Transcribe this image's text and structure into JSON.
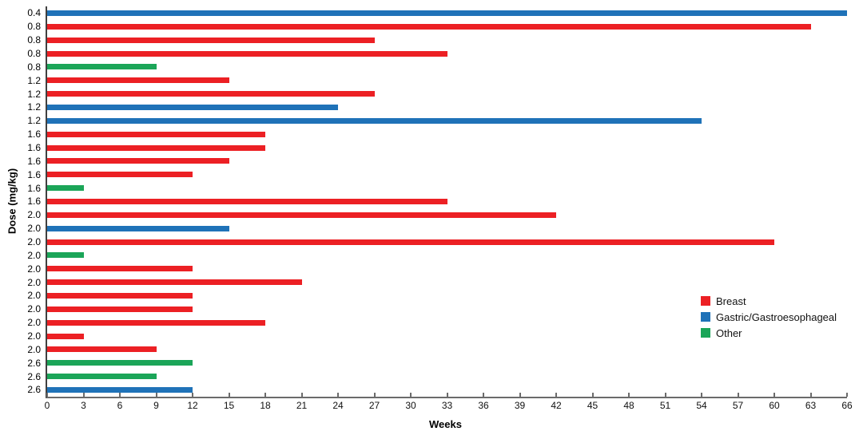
{
  "chart_data": {
    "type": "bar",
    "orientation": "horizontal",
    "title": "",
    "xlabel": "Weeks",
    "ylabel": "Dose (mg/kg)",
    "xlim": [
      0,
      66
    ],
    "xticks": [
      0,
      3,
      6,
      9,
      12,
      15,
      18,
      21,
      24,
      27,
      30,
      33,
      36,
      39,
      42,
      45,
      48,
      51,
      54,
      57,
      60,
      63,
      66
    ],
    "grid": false,
    "legend_position": "right-middle",
    "colors": {
      "Breast": "#EC2024",
      "Gastric/Gastroesophageal": "#1F72B8",
      "Other": "#1BA558"
    },
    "legend": [
      "Breast",
      "Gastric/Gastroesophageal",
      "Other"
    ],
    "bars": [
      {
        "dose": "0.4",
        "group": "Gastric/Gastroesophageal",
        "weeks": 66
      },
      {
        "dose": "0.8",
        "group": "Breast",
        "weeks": 63
      },
      {
        "dose": "0.8",
        "group": "Breast",
        "weeks": 27
      },
      {
        "dose": "0.8",
        "group": "Breast",
        "weeks": 33
      },
      {
        "dose": "0.8",
        "group": "Other",
        "weeks": 9
      },
      {
        "dose": "1.2",
        "group": "Breast",
        "weeks": 15
      },
      {
        "dose": "1.2",
        "group": "Breast",
        "weeks": 27
      },
      {
        "dose": "1.2",
        "group": "Gastric/Gastroesophageal",
        "weeks": 24
      },
      {
        "dose": "1.2",
        "group": "Gastric/Gastroesophageal",
        "weeks": 54
      },
      {
        "dose": "1.6",
        "group": "Breast",
        "weeks": 18
      },
      {
        "dose": "1.6",
        "group": "Breast",
        "weeks": 18
      },
      {
        "dose": "1.6",
        "group": "Breast",
        "weeks": 15
      },
      {
        "dose": "1.6",
        "group": "Breast",
        "weeks": 12
      },
      {
        "dose": "1.6",
        "group": "Other",
        "weeks": 3
      },
      {
        "dose": "1.6",
        "group": "Breast",
        "weeks": 33
      },
      {
        "dose": "2.0",
        "group": "Breast",
        "weeks": 42
      },
      {
        "dose": "2.0",
        "group": "Gastric/Gastroesophageal",
        "weeks": 15
      },
      {
        "dose": "2.0",
        "group": "Breast",
        "weeks": 60
      },
      {
        "dose": "2.0",
        "group": "Other",
        "weeks": 3
      },
      {
        "dose": "2.0",
        "group": "Breast",
        "weeks": 12
      },
      {
        "dose": "2.0",
        "group": "Breast",
        "weeks": 21
      },
      {
        "dose": "2.0",
        "group": "Breast",
        "weeks": 12
      },
      {
        "dose": "2.0",
        "group": "Breast",
        "weeks": 12
      },
      {
        "dose": "2.0",
        "group": "Breast",
        "weeks": 18
      },
      {
        "dose": "2.0",
        "group": "Breast",
        "weeks": 3
      },
      {
        "dose": "2.0",
        "group": "Breast",
        "weeks": 9
      },
      {
        "dose": "2.6",
        "group": "Other",
        "weeks": 12
      },
      {
        "dose": "2.6",
        "group": "Other",
        "weeks": 9
      },
      {
        "dose": "2.6",
        "group": "Gastric/Gastroesophageal",
        "weeks": 12
      }
    ]
  }
}
